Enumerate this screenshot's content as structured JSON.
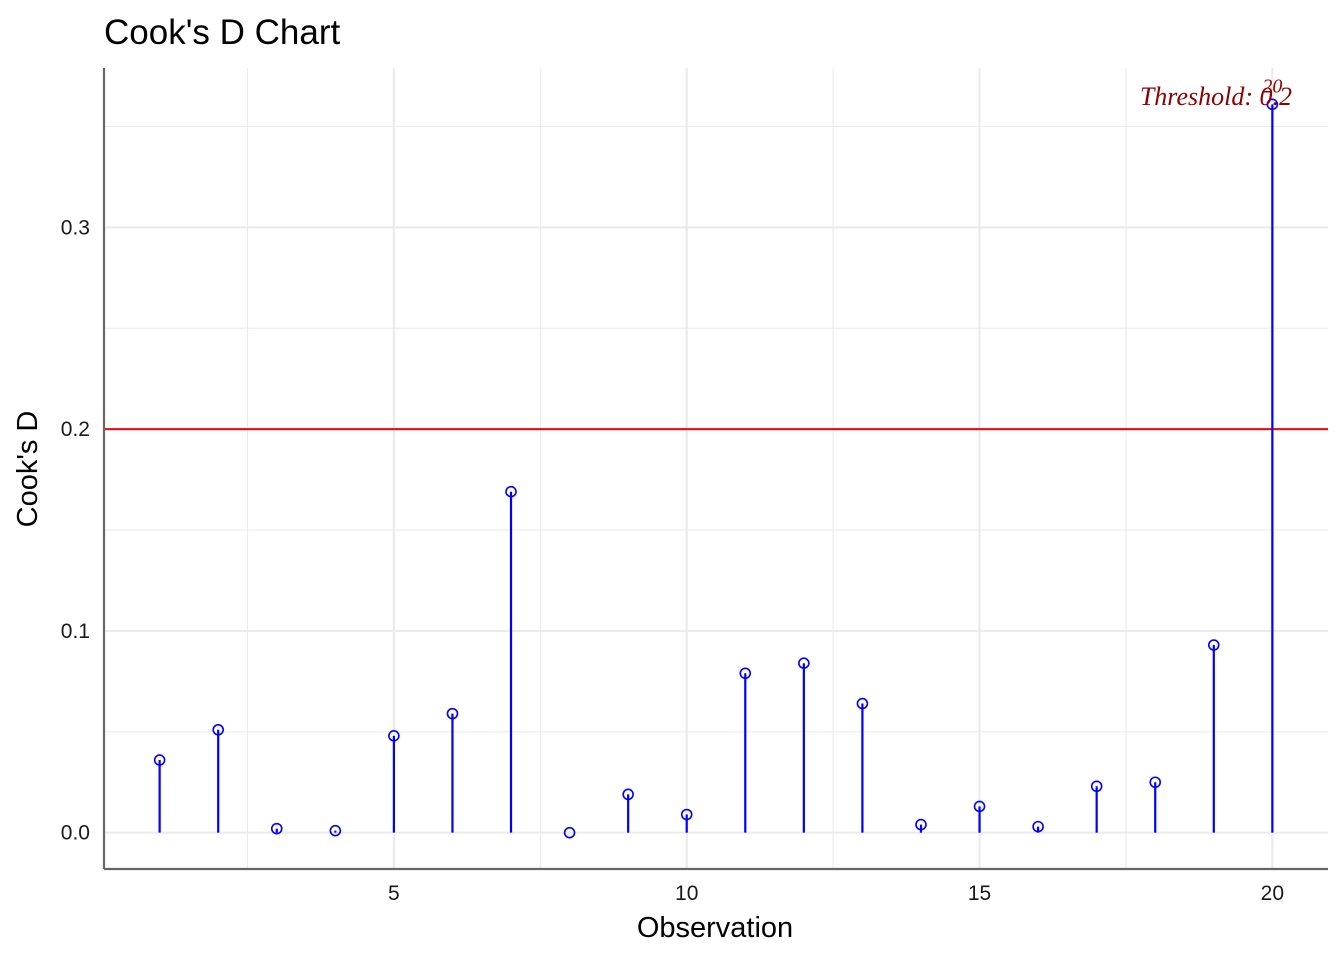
{
  "chart_data": {
    "type": "lollipop",
    "title": "Cook's D Chart",
    "xlabel": "Observation",
    "ylabel": "Cook's D",
    "x": [
      1,
      2,
      3,
      4,
      5,
      6,
      7,
      8,
      9,
      10,
      11,
      12,
      13,
      14,
      15,
      16,
      17,
      18,
      19,
      20
    ],
    "values": [
      0.036,
      0.051,
      0.002,
      0.001,
      0.048,
      0.059,
      0.169,
      0.0,
      0.019,
      0.009,
      0.079,
      0.084,
      0.064,
      0.004,
      0.013,
      0.003,
      0.023,
      0.025,
      0.093,
      0.361
    ],
    "xlim": [
      0.05,
      20.95
    ],
    "ylim": [
      -0.018,
      0.379
    ],
    "x_ticks": [
      5,
      10,
      15,
      20
    ],
    "y_ticks": [
      0.0,
      0.1,
      0.2,
      0.3
    ],
    "y_tick_labels": [
      "0.0",
      "0.1",
      "0.2",
      "0.3"
    ],
    "threshold": 0.2,
    "threshold_label": "Threshold: 0.2",
    "point_labels": [
      {
        "x": 20,
        "label": "20"
      }
    ],
    "grid": true,
    "colors": {
      "stem": "#0000ff",
      "point": "#0000ff",
      "threshold_line": "#ff0000",
      "annotation": "#8b0000",
      "grid": "#ebebeb",
      "axis": "#666666"
    }
  }
}
